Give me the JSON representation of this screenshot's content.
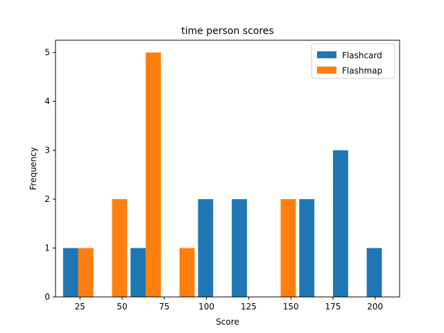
{
  "chart_data": {
    "type": "bar",
    "title": "time person scores",
    "xlabel": "Score",
    "ylabel": "Frequency",
    "xlim": [
      10.5,
      214.5
    ],
    "ylim": [
      0,
      5.25
    ],
    "xticks": [
      25,
      50,
      75,
      100,
      125,
      150,
      175,
      200
    ],
    "yticks": [
      0,
      1,
      2,
      3,
      4,
      5
    ],
    "bin_edges": [
      15,
      35,
      55,
      75,
      95,
      115,
      135,
      155,
      175,
      195,
      215
    ],
    "legend_position": "top-right",
    "grid": false,
    "series": [
      {
        "name": "Flashcard",
        "color": "#1f77b4",
        "values": [
          1,
          0,
          1,
          0,
          2,
          2,
          0,
          2,
          3,
          1
        ]
      },
      {
        "name": "Flashmap",
        "color": "#ff7f0e",
        "values": [
          1,
          2,
          5,
          1,
          0,
          0,
          2,
          0,
          0,
          0
        ]
      }
    ]
  }
}
